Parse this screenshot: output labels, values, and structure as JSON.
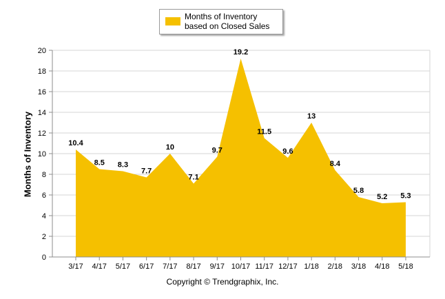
{
  "chart_data": {
    "type": "area",
    "title": "",
    "xlabel": "",
    "ylabel": "Months of Inventory",
    "ylim": [
      0,
      20
    ],
    "yticks": [
      0,
      2,
      4,
      6,
      8,
      10,
      12,
      14,
      16,
      18,
      20
    ],
    "grid": true,
    "legend_position": "top-center",
    "categories": [
      "3/17",
      "4/17",
      "5/17",
      "6/17",
      "7/17",
      "8/17",
      "9/17",
      "10/17",
      "11/17",
      "12/17",
      "1/18",
      "2/18",
      "3/18",
      "4/18",
      "5/18"
    ],
    "series": [
      {
        "name": "Months of Inventory based on Closed Sales",
        "color": "#f5c000",
        "values": [
          10.4,
          8.5,
          8.3,
          7.7,
          10,
          7.1,
          9.7,
          19.2,
          11.5,
          9.6,
          13,
          8.4,
          5.8,
          5.2,
          5.3
        ],
        "labels": [
          "10.4",
          "8.5",
          "8.3",
          "7.7",
          "10",
          "7.1",
          "9.7",
          "19.2",
          "11.5",
          "9.6",
          "13",
          "8.4",
          "5.8",
          "5.2",
          "5.3"
        ]
      }
    ]
  },
  "legend": {
    "label": "Months of Inventory based on Closed Sales"
  },
  "footer": {
    "copyright": "Copyright © Trendgraphix, Inc."
  },
  "colors": {
    "series": "#f5c000",
    "grid": "#d4d4d4",
    "axis": "#8c8c8c"
  }
}
